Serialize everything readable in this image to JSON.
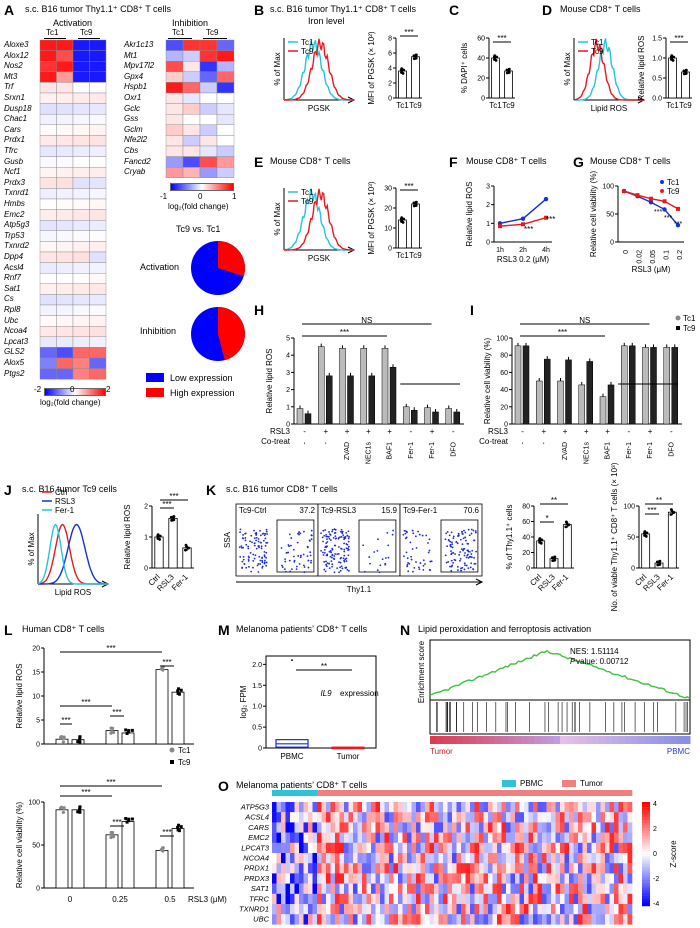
{
  "A": {
    "letter": "A",
    "title": "s.c. B16 tumor Thy1.1⁺ CD8⁺ T cells",
    "activation_label": "Activation",
    "inhibition_label": "Inhibition",
    "col_tc1": "Tc1",
    "col_tc9": "Tc9",
    "activation_genes": [
      "Aloxe3",
      "Alox12",
      "Nos2",
      "Mt3",
      "Trf",
      "Srxn1",
      "Dusp18",
      "Chac1",
      "Cars",
      "Prdx1",
      "Tfrc",
      "Gusb",
      "Ncf1",
      "Prdx3",
      "Txnrd1",
      "Hmbs",
      "Emc2",
      "Atp5g3",
      "Trp53",
      "Txnrd2",
      "Dpp4",
      "Acsl4",
      "Rnf7",
      "Sat1",
      "Cs",
      "Rpl8",
      "Ubc",
      "Ncoa4",
      "Lpcat3",
      "GLS2",
      "Alox5",
      "Ptgs2"
    ],
    "inhibition_genes": [
      "Akr1c13",
      "Mt1",
      "Mpv17l2",
      "Gpx4",
      "Hspb1",
      "Oxr1",
      "Gclc",
      "Gss",
      "Gclm",
      "Nfe2l2",
      "Cbs",
      "Fancd2",
      "Cryab"
    ],
    "scale_left": {
      "min": "-2",
      "mid": "0",
      "max": "2",
      "label": "log₂(fold change)"
    },
    "scale_right": {
      "min": "-1",
      "mid": "0",
      "max": "1",
      "label": "log₂(fold change)"
    },
    "pie_title": "Tc9 vs. Tc1",
    "pie_activation_label": "Activation",
    "pie_inhibition_label": "Inhibition",
    "pie_activation_high_fraction": 0.3,
    "pie_inhibition_high_fraction": 0.46,
    "legend_low": "Low expression",
    "legend_high": "High expression",
    "color_low": "#0000ff",
    "color_high": "#ff0000"
  },
  "B": {
    "letter": "B",
    "title": "s.c. B16 tumor Thy1.1⁺ CD8⁺ T cells",
    "subtitle": "Iron level",
    "ylabel": "% of Max",
    "xlabel": "PGSK",
    "legend": [
      "Tc1",
      "Tc9"
    ],
    "bar_ylabel": "MFI of PGSK (× 10²)",
    "ticks": [
      "0",
      "2",
      "4",
      "6",
      "8"
    ],
    "sig": "***",
    "chart_data": {
      "type": "bar",
      "categories": [
        "Tc1",
        "Tc9"
      ],
      "values": [
        3.6,
        5.5
      ],
      "ylim": [
        0,
        8
      ]
    }
  },
  "C": {
    "letter": "C",
    "ylabel": "% DAPI⁺ cells",
    "ticks": [
      "0",
      "20",
      "40",
      "60"
    ],
    "sig": "***",
    "chart_data": {
      "type": "bar",
      "categories": [
        "Tc1",
        "Tc9"
      ],
      "values": [
        40,
        27
      ],
      "ylim": [
        0,
        60
      ]
    }
  },
  "D": {
    "letter": "D",
    "title": "Mouse CD8⁺ T cells",
    "ylabel": "% of Max",
    "xlabel": "Lipid ROS",
    "legend": [
      "Tc1",
      "Tc9"
    ],
    "bar_ylabel": "Relative lipid ROS",
    "ticks": [
      "0.0",
      "0.5",
      "1.0",
      "1.5"
    ],
    "sig": "***",
    "chart_data": {
      "type": "bar",
      "categories": [
        "Tc1",
        "Tc9"
      ],
      "values": [
        1.0,
        0.65
      ],
      "ylim": [
        0,
        1.5
      ]
    }
  },
  "E": {
    "letter": "E",
    "title": "Mouse CD8⁺ T cells",
    "ylabel": "% of Max",
    "xlabel": "PGSK",
    "legend": [
      "Tc1",
      "Tc9"
    ],
    "bar_ylabel": "MFI of PGSK (× 10³)",
    "ticks": [
      "0",
      "10",
      "20",
      "30"
    ],
    "sig": "***",
    "chart_data": {
      "type": "bar",
      "categories": [
        "Tc1",
        "Tc9"
      ],
      "values": [
        14,
        22
      ],
      "ylim": [
        0,
        30
      ]
    }
  },
  "F": {
    "letter": "F",
    "title": "Mouse CD8⁺ T cells",
    "ylabel": "Relative lipid ROS",
    "xlabel": "RSL3 0.2 (μM)",
    "ticks": [
      "0",
      "1",
      "2",
      "3"
    ],
    "sig1": "***",
    "sig2": "***",
    "chart_data": {
      "type": "line",
      "x": [
        "1h",
        "2h",
        "4h"
      ],
      "series": [
        {
          "name": "Tc1",
          "values": [
            1.0,
            1.25,
            2.3
          ]
        },
        {
          "name": "Tc9",
          "values": [
            0.85,
            0.95,
            1.3
          ]
        }
      ],
      "ylim": [
        0,
        3
      ]
    }
  },
  "G": {
    "letter": "G",
    "title": "Mouse CD8⁺ T cells",
    "ylabel": "Relative cell viability (%)",
    "xlabel": "RSL3 (μM)",
    "ticks": [
      "0",
      "50",
      "100"
    ],
    "legend": [
      "Tc1",
      "Tc9"
    ],
    "sig": [
      "***",
      "***",
      "***"
    ],
    "chart_data": {
      "type": "line",
      "x": [
        "0",
        "0.02",
        "0.05",
        "0.1",
        "0.2"
      ],
      "series": [
        {
          "name": "Tc1",
          "values": [
            100,
            90,
            78,
            64,
            33
          ]
        },
        {
          "name": "Tc9",
          "values": [
            100,
            92,
            85,
            80,
            65
          ]
        }
      ],
      "ylim": [
        0,
        110
      ]
    }
  },
  "H": {
    "letter": "H",
    "ylabel": "Relative lipid ROS",
    "ticks": [
      "0",
      "1",
      "2",
      "3",
      "4",
      "5"
    ],
    "ns": "NS",
    "sig": "***",
    "row1_label": "RSL3",
    "row2_label": "Co-treat",
    "rsl3": [
      "-",
      "+",
      "+",
      "+",
      "+",
      "-",
      "+",
      "-"
    ],
    "cotreat": [
      "-",
      "-",
      "ZVAD",
      "NEC1s",
      "BAF1",
      "Fer-1",
      "Fer-1",
      "DFO"
    ],
    "chart_data": {
      "type": "bar",
      "categories": [
        "Ctrl",
        "RSL3",
        "RSL3+ZVAD",
        "RSL3+NEC1s",
        "RSL3+BAF1",
        "Fer-1",
        "RSL3+Fer-1",
        "DFO"
      ],
      "series": [
        {
          "name": "Tc1",
          "values": [
            0.9,
            4.5,
            4.4,
            4.4,
            4.4,
            1.0,
            0.95,
            0.9
          ]
        },
        {
          "name": "Tc9",
          "values": [
            0.6,
            2.8,
            2.8,
            2.8,
            3.3,
            0.8,
            0.7,
            0.7
          ]
        }
      ],
      "ylim": [
        0,
        5
      ]
    }
  },
  "I": {
    "letter": "I",
    "ylabel": "Relative cell viability (%)",
    "ticks": [
      "0",
      "20",
      "40",
      "60",
      "80",
      "100"
    ],
    "ns": "NS",
    "sig": "***",
    "legend": [
      "Tc1",
      "Tc9"
    ],
    "row1_label": "RSL3",
    "row2_label": "Co-treat",
    "rsl3": [
      "-",
      "+",
      "+",
      "+",
      "+",
      "-",
      "+",
      "-"
    ],
    "cotreat": [
      "-",
      "-",
      "ZVAD",
      "NEC1s",
      "BAF1",
      "Fer-1",
      "Fer-1",
      "DFO"
    ],
    "chart_data": {
      "type": "bar",
      "categories": [
        "Ctrl",
        "RSL3",
        "RSL3+ZVAD",
        "RSL3+NEC1s",
        "RSL3+BAF1",
        "Fer-1",
        "RSL3+Fer-1",
        "DFO"
      ],
      "series": [
        {
          "name": "Tc1",
          "values": [
            100,
            55,
            55,
            50,
            35,
            100,
            98,
            98
          ]
        },
        {
          "name": "Tc9",
          "values": [
            100,
            83,
            82,
            80,
            50,
            100,
            98,
            98
          ]
        }
      ],
      "ylim": [
        0,
        110
      ]
    }
  },
  "J": {
    "letter": "J",
    "title": "s.c. B16 tumor Tc9 cells",
    "legend": [
      "Ctrl",
      "RSL3",
      "Fer-1"
    ],
    "ylabel": "% of Max",
    "xlabel": "Lipid ROS",
    "bar_ylabel": "Relative lipid ROS",
    "ticks": [
      "0",
      "1",
      "2"
    ],
    "sig": [
      "***",
      "***"
    ],
    "chart_data": {
      "type": "bar",
      "categories": [
        "Ctrl",
        "RSL3",
        "Fer-1"
      ],
      "values": [
        1.0,
        1.6,
        0.65
      ],
      "ylim": [
        0,
        2
      ]
    }
  },
  "K": {
    "letter": "K",
    "title": "s.c. B16 tumor CD8⁺ T cells",
    "plots": [
      {
        "label": "Tc9-Ctrl",
        "pct": "37.2"
      },
      {
        "label": "Tc9-RSL3",
        "pct": "15.9"
      },
      {
        "label": "Tc9-Fer-1",
        "pct": "70.6"
      }
    ],
    "ylabel": "SSA",
    "xlabel": "Thy1.1",
    "bar1_ylabel": "% of Thy1.1⁺ cells",
    "bar1_ticks": [
      "0",
      "20",
      "40",
      "60",
      "80"
    ],
    "bar1_sig": [
      "**",
      "*"
    ],
    "bar2_ylabel": "No. of viable Thy1.1⁺ CD8⁺ T cells (× 10³)",
    "bar2_ticks": [
      "0",
      "50",
      "100"
    ],
    "bar2_sig": [
      "**",
      "***"
    ],
    "chart_data": [
      {
        "type": "bar",
        "categories": [
          "Ctrl",
          "RSL3",
          "Fer-1"
        ],
        "values": [
          35,
          12,
          56
        ],
        "ylim": [
          0,
          80
        ]
      },
      {
        "type": "bar",
        "categories": [
          "Ctrl",
          "RSL3",
          "Fer-1"
        ],
        "values": [
          55,
          8,
          90
        ],
        "ylim": [
          0,
          100
        ]
      }
    ]
  },
  "L": {
    "letter": "L",
    "title": "Human CD8⁺ T cells",
    "ylabel_top": "Relative lipid ROS",
    "ticks_top": [
      "0",
      "5",
      "10",
      "15",
      "20"
    ],
    "ylabel_bottom": "Relative cell viability (%)",
    "ticks_bottom": [
      "0",
      "50",
      "100"
    ],
    "xticks": [
      "0",
      "0.25",
      "0.5"
    ],
    "xunit": "RSL3 (μM)",
    "legend": [
      "Tc1",
      "Tc9"
    ],
    "sig": "***",
    "chart_data": [
      {
        "type": "bar",
        "categories": [
          "0",
          "0.25",
          "0.5"
        ],
        "series": [
          {
            "name": "Tc1",
            "values": [
              1.0,
              2.8,
              15.5
            ]
          },
          {
            "name": "Tc9",
            "values": [
              0.9,
              2.3,
              10.8
            ]
          }
        ],
        "ylim": [
          0,
          20
        ]
      },
      {
        "type": "bar",
        "categories": [
          "0",
          "0.25",
          "0.5"
        ],
        "series": [
          {
            "name": "Tc1",
            "values": [
              100,
              68,
              48
            ]
          },
          {
            "name": "Tc9",
            "values": [
              100,
              85,
              76
            ]
          }
        ],
        "ylim": [
          0,
          110
        ]
      }
    ]
  },
  "M": {
    "letter": "M",
    "title": "Melanoma patients’ CD8⁺ T cells",
    "ylabel": "log₂ FPM",
    "ticks": [
      "0",
      "0.5",
      "1.0",
      "1.5",
      "2.0"
    ],
    "gene": "IL9 expression",
    "sig": "**",
    "categories": [
      "PBMC",
      "Tumor"
    ],
    "chart_data": {
      "type": "box",
      "categories": [
        "PBMC",
        "Tumor"
      ],
      "median": [
        0.1,
        0.0
      ],
      "q1": [
        0.02,
        0.0
      ],
      "q3": [
        0.2,
        0.02
      ],
      "ylim": [
        0,
        2.2
      ]
    }
  },
  "N": {
    "letter": "N",
    "title": "Lipid peroxidation and ferroptosis activation",
    "ylabel": "Enrichment score",
    "nes": "NES: 1.51114",
    "pvalue_label": "P",
    "pvalue": " value: 0.00712",
    "left": "Tumor",
    "right": "PBMC"
  },
  "O": {
    "letter": "O",
    "title": "Melanoma patients’ CD8⁺ T cells",
    "legend": [
      "PBMC",
      "Tumor"
    ],
    "genes": [
      "ATP5G3",
      "ACSL4",
      "CARS",
      "EMC2",
      "LPCAT3",
      "NCOA4",
      "PRDX1",
      "PRDX3",
      "SAT1",
      "TFRC",
      "TXNRD1",
      "UBC"
    ],
    "scale": [
      "4",
      "2",
      "0",
      "-2",
      "-4"
    ],
    "scale_label": "Z-score",
    "color_pbmc": "#2ec4d6",
    "color_tumor": "#f08080"
  }
}
